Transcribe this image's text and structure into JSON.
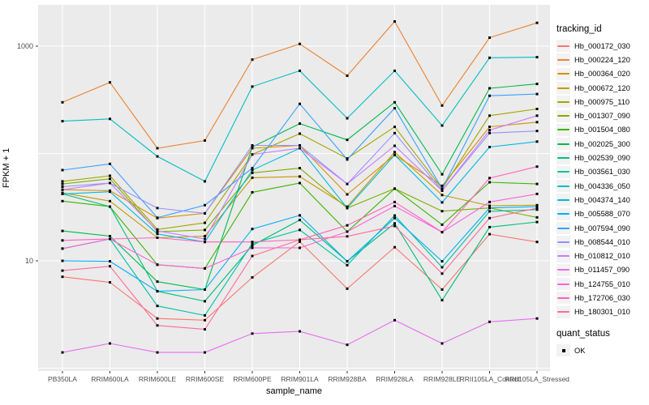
{
  "chart_data": {
    "type": "line",
    "title": "",
    "xlabel": "sample_name",
    "ylabel": "FPKM + 1",
    "y_scale": "log10",
    "ylim": [
      0.94,
      2400
    ],
    "grid": true,
    "legend_position": "right",
    "panel_bg": "#EBEBEB",
    "grid_color": "#FFFFFF",
    "tick_color": "#333333",
    "tick_label_color": "#4D4D4D",
    "point_color": "#000000",
    "y_tick_labels": [
      "10",
      "1000"
    ],
    "y_tick_values": [
      10,
      1000
    ],
    "gridline_values": [
      1,
      10,
      100,
      1000
    ],
    "categories": [
      "PB350LA",
      "RRIM600LA",
      "RRIM600LE",
      "RRIM600SE",
      "RRIM600PE",
      "RRIM901LA",
      "RRIM928BA",
      "RRIM928LA",
      "RRIM928LE",
      "RRII105LA_Control",
      "RRII105LA_Stressed"
    ],
    "series": [
      {
        "name": "Hb_000172_030",
        "color": "#F8766D",
        "values": [
          7.1,
          6.3,
          2.9,
          2.8,
          7.0,
          15.1,
          5.5,
          13.4,
          5.4,
          17.7,
          15.0
        ]
      },
      {
        "name": "Hb_000224_120",
        "color": "#EA8331",
        "values": [
          300,
          460,
          112,
          132,
          750,
          1050,
          530,
          1700,
          280,
          1200,
          1650
        ]
      },
      {
        "name": "Hb_000364_020",
        "color": "#D89000",
        "values": [
          46,
          45,
          25,
          27.7,
          112,
          119,
          41.6,
          97,
          50,
          177,
          196
        ]
      },
      {
        "name": "Hb_000672_120",
        "color": "#C09B00",
        "values": [
          43,
          36,
          16.4,
          17,
          59.5,
          61,
          32,
          103,
          41,
          32.6,
          33
        ]
      },
      {
        "name": "Hb_000975_110",
        "color": "#A3A500",
        "values": [
          55,
          62,
          19.6,
          22.6,
          98,
          153,
          90,
          177,
          47,
          225,
          260
        ]
      },
      {
        "name": "Hb_001307_090",
        "color": "#7CAE00",
        "values": [
          52,
          58,
          18.7,
          19.4,
          66,
          73,
          31,
          47,
          29,
          31.1,
          25.4
        ]
      },
      {
        "name": "Hb_001504_080",
        "color": "#39B600",
        "values": [
          36,
          32,
          9.2,
          8.5,
          43.5,
          53,
          18.7,
          47,
          21.7,
          54,
          52
        ]
      },
      {
        "name": "Hb_002025_300",
        "color": "#00BB4E",
        "values": [
          19,
          17,
          6.4,
          5.4,
          115,
          190,
          134,
          300,
          64,
          405,
          445
        ]
      },
      {
        "name": "Hb_002539_090",
        "color": "#00BF7D",
        "values": [
          42,
          32,
          5.2,
          4.2,
          13.9,
          24,
          9.9,
          22.3,
          4.3,
          20.6,
          23
        ]
      },
      {
        "name": "Hb_003561_030",
        "color": "#00C1A3",
        "values": [
          13,
          16,
          3.8,
          3.1,
          14.5,
          19.4,
          9.1,
          26.4,
          8.7,
          28.9,
          30
        ]
      },
      {
        "name": "Hb_004336_050",
        "color": "#00BFC4",
        "values": [
          200,
          210,
          94,
          55,
          420,
          590,
          213,
          590,
          182,
          780,
          790
        ]
      },
      {
        "name": "Hb_004374_140",
        "color": "#00BAE0",
        "values": [
          42,
          44,
          17.8,
          15,
          70,
          112,
          31,
          97,
          35,
          115,
          129
        ]
      },
      {
        "name": "Hb_005588_070",
        "color": "#00B0F6",
        "values": [
          10,
          9.9,
          5.2,
          5.4,
          19.8,
          26.5,
          9.9,
          25,
          9.9,
          31.1,
          32
        ]
      },
      {
        "name": "Hb_007594_090",
        "color": "#35A2FF",
        "values": [
          70,
          80,
          25.2,
          33,
          73,
          290,
          88,
          264,
          47,
          345,
          358
        ]
      },
      {
        "name": "Hb_008544_010",
        "color": "#9590FF",
        "values": [
          49,
          53,
          31,
          27.7,
          119,
          119,
          52,
          155,
          45,
          155,
          162
        ]
      },
      {
        "name": "Hb_010812_010",
        "color": "#C77CFF",
        "values": [
          46,
          53,
          19.0,
          16,
          98,
          112,
          52,
          118,
          45,
          165,
          225
        ]
      },
      {
        "name": "Hb_011457_090",
        "color": "#E76BF3",
        "values": [
          1.4,
          1.7,
          1.4,
          1.4,
          2.1,
          2.2,
          1.65,
          2.8,
          1.7,
          2.7,
          2.9
        ]
      },
      {
        "name": "Hb_124755_010",
        "color": "#FA62DB",
        "values": [
          13,
          16,
          9.2,
          8.5,
          13.2,
          13.2,
          18.7,
          32.4,
          18.5,
          35.3,
          42
        ]
      },
      {
        "name": "Hb_172706_030",
        "color": "#FF62BC",
        "values": [
          15.5,
          16,
          16.4,
          15,
          15,
          15.7,
          21.4,
          35.3,
          18.5,
          59,
          75.5
        ]
      },
      {
        "name": "Hb_180301_010",
        "color": "#FF6A98",
        "values": [
          8.1,
          8.9,
          2.5,
          2.3,
          11.1,
          15.7,
          16.9,
          21.1,
          7.6,
          25,
          31
        ]
      }
    ]
  },
  "legend": {
    "tracking_title": "tracking_id",
    "quant_title": "quant_status",
    "quant_items": [
      {
        "label": "OK",
        "marker": "black-square"
      }
    ]
  }
}
